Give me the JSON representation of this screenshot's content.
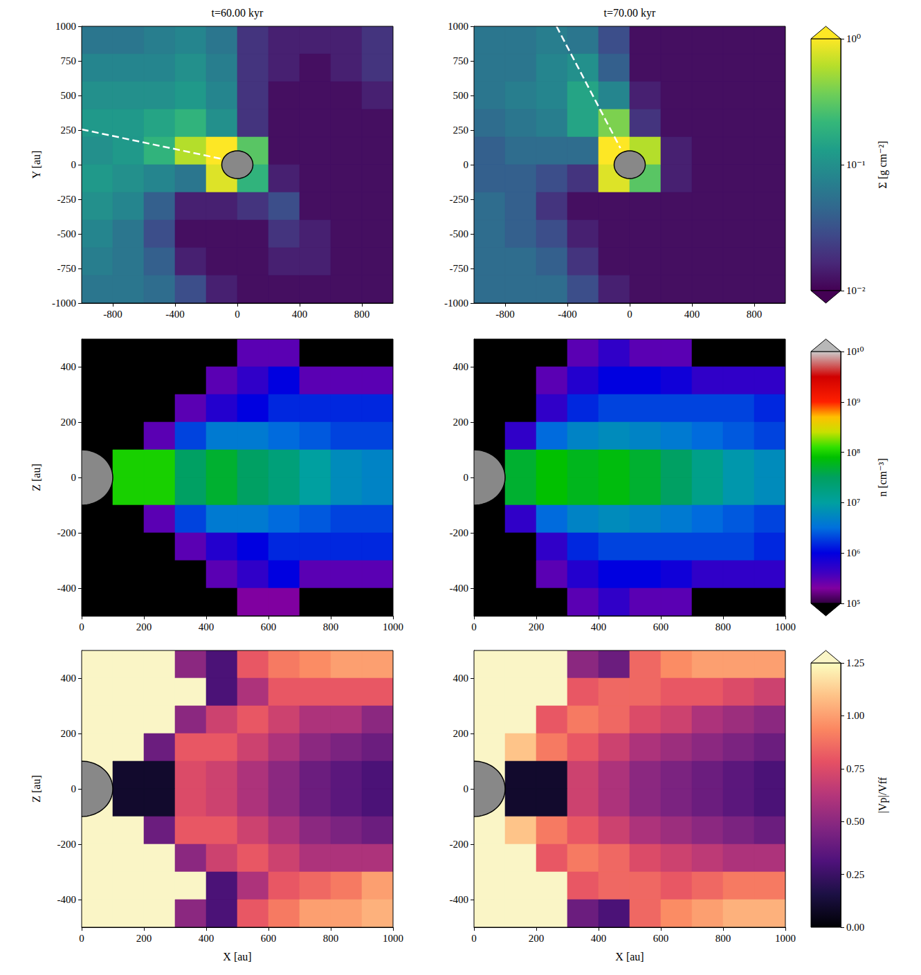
{
  "chart_data": [
    {
      "type": "heatmap",
      "title": "t=60.00 kyr",
      "ylabel": "Y [au]",
      "xlim": [
        -1000,
        1000
      ],
      "ylim": [
        -1000,
        1000
      ],
      "xticks": [
        -800,
        -400,
        0,
        400,
        800
      ],
      "yticks": [
        -1000,
        -750,
        -500,
        -250,
        0,
        250,
        500,
        750,
        1000
      ],
      "x": [
        -900,
        -700,
        -500,
        -300,
        -100,
        100,
        300,
        500,
        700,
        900
      ],
      "y": [
        900,
        700,
        500,
        300,
        100,
        -100,
        -300,
        -500,
        -700,
        -900
      ],
      "values": [
        [
          0.06,
          0.06,
          0.07,
          0.08,
          0.06,
          0.02,
          0.015,
          0.015,
          0.015,
          0.02
        ],
        [
          0.08,
          0.08,
          0.08,
          0.1,
          0.07,
          0.02,
          0.015,
          0.012,
          0.015,
          0.02
        ],
        [
          0.1,
          0.1,
          0.1,
          0.12,
          0.08,
          0.02,
          0.012,
          0.012,
          0.012,
          0.015
        ],
        [
          0.12,
          0.12,
          0.15,
          0.2,
          0.1,
          0.02,
          0.012,
          0.012,
          0.012,
          0.012
        ],
        [
          0.1,
          0.12,
          0.2,
          0.6,
          1.5,
          0.3,
          0.012,
          0.012,
          0.012,
          0.012
        ],
        [
          0.12,
          0.1,
          0.08,
          0.06,
          0.8,
          0.2,
          0.015,
          0.012,
          0.012,
          0.012
        ],
        [
          0.1,
          0.08,
          0.04,
          0.015,
          0.015,
          0.02,
          0.03,
          0.012,
          0.012,
          0.012
        ],
        [
          0.08,
          0.06,
          0.03,
          0.012,
          0.012,
          0.012,
          0.02,
          0.015,
          0.012,
          0.012
        ],
        [
          0.07,
          0.06,
          0.04,
          0.015,
          0.012,
          0.012,
          0.015,
          0.015,
          0.012,
          0.012
        ],
        [
          0.06,
          0.06,
          0.05,
          0.03,
          0.015,
          0.012,
          0.012,
          0.012,
          0.012,
          0.012
        ]
      ],
      "sink_radius": 100,
      "annotations": [
        {
          "type": "line",
          "x": [
            -1000,
            -50
          ],
          "y": [
            255,
            30
          ],
          "line_style": "dashed",
          "color": "#ffffff"
        }
      ]
    },
    {
      "type": "heatmap",
      "title": "t=70.00 kyr",
      "xlim": [
        -1000,
        1000
      ],
      "ylim": [
        -1000,
        1000
      ],
      "xticks": [
        -800,
        -400,
        0,
        400,
        800
      ],
      "yticks": [
        -1000,
        -750,
        -500,
        -250,
        0,
        250,
        500,
        750,
        1000
      ],
      "x": [
        -900,
        -700,
        -500,
        -300,
        -100,
        100,
        300,
        500,
        700,
        900
      ],
      "y": [
        900,
        700,
        500,
        300,
        100,
        -100,
        -300,
        -500,
        -700,
        -900
      ],
      "values": [
        [
          0.06,
          0.06,
          0.07,
          0.06,
          0.03,
          0.012,
          0.012,
          0.012,
          0.012,
          0.012
        ],
        [
          0.06,
          0.06,
          0.08,
          0.1,
          0.04,
          0.012,
          0.012,
          0.012,
          0.012,
          0.012
        ],
        [
          0.06,
          0.07,
          0.08,
          0.15,
          0.08,
          0.015,
          0.012,
          0.012,
          0.012,
          0.012
        ],
        [
          0.05,
          0.06,
          0.07,
          0.15,
          0.4,
          0.02,
          0.012,
          0.012,
          0.012,
          0.012
        ],
        [
          0.04,
          0.05,
          0.05,
          0.05,
          1.5,
          0.6,
          0.015,
          0.012,
          0.012,
          0.012
        ],
        [
          0.04,
          0.04,
          0.03,
          0.02,
          0.8,
          0.3,
          0.015,
          0.012,
          0.012,
          0.012
        ],
        [
          0.05,
          0.04,
          0.02,
          0.012,
          0.012,
          0.012,
          0.012,
          0.012,
          0.012,
          0.012
        ],
        [
          0.05,
          0.04,
          0.03,
          0.015,
          0.012,
          0.012,
          0.012,
          0.012,
          0.012,
          0.012
        ],
        [
          0.05,
          0.05,
          0.04,
          0.02,
          0.012,
          0.012,
          0.012,
          0.012,
          0.012,
          0.012
        ],
        [
          0.05,
          0.05,
          0.05,
          0.03,
          0.015,
          0.012,
          0.012,
          0.012,
          0.012,
          0.012
        ]
      ],
      "sink_radius": 100,
      "annotations": [
        {
          "type": "line",
          "x": [
            -470,
            -60
          ],
          "y": [
            1000,
            120
          ],
          "line_style": "dashed",
          "color": "#ffffff"
        }
      ],
      "colorbar": {
        "label": "Σ [g cm⁻²]",
        "lim": [
          0.01,
          1
        ],
        "log": true,
        "ticks": [
          {
            "value": 0.01,
            "label": "10⁻²"
          },
          {
            "value": 0.1,
            "label": "10⁻¹"
          },
          {
            "value": 1,
            "label": "10⁰"
          }
        ]
      }
    },
    {
      "type": "heatmap",
      "ylabel": "Z [au]",
      "xlim": [
        0,
        1000
      ],
      "ylim": [
        -500,
        500
      ],
      "xticks": [
        0,
        200,
        400,
        600,
        800,
        1000
      ],
      "yticks": [
        -400,
        -200,
        0,
        200,
        400
      ],
      "x": [
        50,
        150,
        250,
        350,
        450,
        550,
        650,
        750,
        850,
        950
      ],
      "y": [
        450,
        350,
        250,
        150,
        50,
        -50,
        -150,
        -250,
        -350,
        -450
      ],
      "values": [
        [
          10000.0,
          10000.0,
          10000.0,
          10000.0,
          10000.0,
          300000.0,
          300000.0,
          10000.0,
          10000.0,
          10000.0
        ],
        [
          10000.0,
          10000.0,
          10000.0,
          10000.0,
          300000.0,
          500000.0,
          1000000.0,
          300000.0,
          300000.0,
          300000.0
        ],
        [
          10000.0,
          10000.0,
          10000.0,
          300000.0,
          600000.0,
          1000000.0,
          1500000.0,
          1500000.0,
          1500000.0,
          1500000.0
        ],
        [
          10000.0,
          10000.0,
          300000.0,
          2000000.0,
          4000000.0,
          4000000.0,
          3000000.0,
          2500000.0,
          2000000.0,
          2000000.0
        ],
        [
          10000.0,
          100000000.0,
          100000000.0,
          30000000.0,
          50000000.0,
          30000000.0,
          20000000.0,
          10000000.0,
          6000000.0,
          5000000.0
        ],
        [
          10000.0,
          100000000.0,
          100000000.0,
          30000000.0,
          50000000.0,
          30000000.0,
          20000000.0,
          10000000.0,
          6000000.0,
          5000000.0
        ],
        [
          10000.0,
          10000.0,
          300000.0,
          2000000.0,
          4000000.0,
          4000000.0,
          3000000.0,
          2500000.0,
          2000000.0,
          2000000.0
        ],
        [
          10000.0,
          10000.0,
          10000.0,
          300000.0,
          600000.0,
          1000000.0,
          1500000.0,
          1500000.0,
          1500000.0,
          1500000.0
        ],
        [
          10000.0,
          10000.0,
          10000.0,
          10000.0,
          300000.0,
          500000.0,
          1000000.0,
          300000.0,
          300000.0,
          300000.0
        ],
        [
          10000.0,
          10000.0,
          10000.0,
          10000.0,
          10000.0,
          200000.0,
          200000.0,
          10000.0,
          10000.0,
          10000.0
        ]
      ],
      "sink_radius": 100
    },
    {
      "type": "heatmap",
      "xlim": [
        0,
        1000
      ],
      "ylim": [
        -500,
        500
      ],
      "xticks": [
        0,
        200,
        400,
        600,
        800,
        1000
      ],
      "yticks": [
        -400,
        -200,
        0,
        200,
        400
      ],
      "x": [
        50,
        150,
        250,
        350,
        450,
        550,
        650,
        750,
        850,
        950
      ],
      "y": [
        450,
        350,
        250,
        150,
        50,
        -50,
        -150,
        -250,
        -350,
        -450
      ],
      "values": [
        [
          10000.0,
          10000.0,
          10000.0,
          300000.0,
          500000.0,
          300000.0,
          300000.0,
          10000.0,
          10000.0,
          10000.0
        ],
        [
          10000.0,
          10000.0,
          300000.0,
          600000.0,
          1000000.0,
          1000000.0,
          800000.0,
          500000.0,
          500000.0,
          500000.0
        ],
        [
          10000.0,
          10000.0,
          500000.0,
          1500000.0,
          2000000.0,
          2000000.0,
          2000000.0,
          2000000.0,
          2000000.0,
          1500000.0
        ],
        [
          10000.0,
          500000.0,
          3000000.0,
          5000000.0,
          6000000.0,
          5000000.0,
          4000000.0,
          3000000.0,
          2500000.0,
          2000000.0
        ],
        [
          10000.0,
          50000000.0,
          80000000.0,
          60000000.0,
          70000000.0,
          50000000.0,
          30000000.0,
          15000000.0,
          8000000.0,
          6000000.0
        ],
        [
          10000.0,
          50000000.0,
          80000000.0,
          60000000.0,
          70000000.0,
          50000000.0,
          30000000.0,
          15000000.0,
          8000000.0,
          6000000.0
        ],
        [
          10000.0,
          500000.0,
          3000000.0,
          5000000.0,
          6000000.0,
          5000000.0,
          4000000.0,
          3000000.0,
          2500000.0,
          2000000.0
        ],
        [
          10000.0,
          10000.0,
          500000.0,
          1500000.0,
          2000000.0,
          2000000.0,
          2000000.0,
          2000000.0,
          2000000.0,
          1500000.0
        ],
        [
          10000.0,
          10000.0,
          300000.0,
          600000.0,
          1000000.0,
          1000000.0,
          800000.0,
          500000.0,
          500000.0,
          500000.0
        ],
        [
          10000.0,
          10000.0,
          10000.0,
          300000.0,
          500000.0,
          300000.0,
          300000.0,
          10000.0,
          10000.0,
          10000.0
        ]
      ],
      "sink_radius": 100,
      "colorbar": {
        "label": "n [cm⁻³]",
        "lim": [
          100000.0,
          10000000000.0
        ],
        "log": true,
        "ticks": [
          {
            "value": 100000.0,
            "label": "10⁵"
          },
          {
            "value": 1000000.0,
            "label": "10⁶"
          },
          {
            "value": 10000000.0,
            "label": "10⁷"
          },
          {
            "value": 100000000.0,
            "label": "10⁸"
          },
          {
            "value": 1000000000.0,
            "label": "10⁹"
          },
          {
            "value": 10000000000.0,
            "label": "10¹⁰"
          }
        ]
      }
    },
    {
      "type": "heatmap",
      "xlabel": "X [au]",
      "ylabel": "Z [au]",
      "xlim": [
        0,
        1000
      ],
      "ylim": [
        -500,
        500
      ],
      "xticks": [
        0,
        200,
        400,
        600,
        800,
        1000
      ],
      "yticks": [
        -400,
        -200,
        0,
        200,
        400
      ],
      "x": [
        50,
        150,
        250,
        350,
        450,
        550,
        650,
        750,
        850,
        950
      ],
      "y": [
        450,
        350,
        250,
        150,
        50,
        -50,
        -150,
        -250,
        -350,
        -450
      ],
      "values": [
        [
          1.3,
          1.3,
          1.3,
          0.5,
          0.3,
          0.8,
          0.9,
          0.95,
          1.0,
          1.0
        ],
        [
          1.3,
          1.3,
          1.3,
          1.3,
          0.3,
          0.6,
          0.8,
          0.8,
          0.8,
          0.8
        ],
        [
          1.3,
          1.3,
          1.3,
          0.5,
          0.7,
          0.8,
          0.7,
          0.6,
          0.6,
          0.5
        ],
        [
          1.3,
          1.3,
          0.4,
          0.8,
          0.8,
          0.7,
          0.6,
          0.5,
          0.45,
          0.4
        ],
        [
          1.3,
          0.1,
          0.1,
          0.75,
          0.7,
          0.6,
          0.5,
          0.4,
          0.35,
          0.3
        ],
        [
          1.3,
          0.1,
          0.1,
          0.75,
          0.7,
          0.6,
          0.5,
          0.4,
          0.35,
          0.3
        ],
        [
          1.3,
          1.3,
          0.4,
          0.8,
          0.8,
          0.7,
          0.6,
          0.5,
          0.45,
          0.4
        ],
        [
          1.3,
          1.3,
          1.3,
          0.5,
          0.7,
          0.8,
          0.7,
          0.6,
          0.6,
          0.6
        ],
        [
          1.3,
          1.3,
          1.3,
          1.3,
          0.3,
          0.6,
          0.8,
          0.85,
          0.9,
          1.0
        ],
        [
          1.3,
          1.3,
          1.3,
          0.5,
          0.3,
          0.8,
          0.9,
          1.0,
          1.0,
          1.05
        ]
      ],
      "sink_radius": 100
    },
    {
      "type": "heatmap",
      "xlabel": "X [au]",
      "xlim": [
        0,
        1000
      ],
      "ylim": [
        -500,
        500
      ],
      "xticks": [
        0,
        200,
        400,
        600,
        800,
        1000
      ],
      "yticks": [
        -400,
        -200,
        0,
        200,
        400
      ],
      "x": [
        50,
        150,
        250,
        350,
        450,
        550,
        650,
        750,
        850,
        950
      ],
      "y": [
        450,
        350,
        250,
        150,
        50,
        -50,
        -150,
        -250,
        -350,
        -450
      ],
      "values": [
        [
          1.3,
          1.3,
          1.3,
          0.5,
          0.4,
          0.85,
          0.95,
          1.0,
          1.0,
          1.0
        ],
        [
          1.3,
          1.3,
          1.3,
          0.8,
          0.85,
          0.85,
          0.8,
          0.8,
          0.75,
          0.7
        ],
        [
          1.3,
          1.3,
          0.8,
          0.9,
          0.85,
          0.75,
          0.7,
          0.6,
          0.55,
          0.5
        ],
        [
          1.3,
          1.1,
          0.9,
          0.8,
          0.7,
          0.6,
          0.55,
          0.5,
          0.45,
          0.4
        ],
        [
          1.3,
          0.1,
          0.1,
          0.7,
          0.6,
          0.5,
          0.45,
          0.4,
          0.35,
          0.3
        ],
        [
          1.3,
          0.1,
          0.1,
          0.7,
          0.6,
          0.5,
          0.45,
          0.4,
          0.35,
          0.3
        ],
        [
          1.3,
          1.1,
          0.9,
          0.8,
          0.7,
          0.6,
          0.55,
          0.5,
          0.45,
          0.4
        ],
        [
          1.3,
          1.3,
          0.8,
          0.9,
          0.85,
          0.75,
          0.7,
          0.65,
          0.6,
          0.6
        ],
        [
          1.3,
          1.3,
          1.3,
          0.8,
          0.85,
          0.85,
          0.8,
          0.85,
          0.9,
          0.9
        ],
        [
          1.3,
          1.3,
          1.3,
          0.4,
          0.3,
          0.85,
          0.95,
          1.0,
          1.05,
          1.05
        ]
      ],
      "sink_radius": 100,
      "colorbar": {
        "label": "|Vp|/Vff",
        "lim": [
          0,
          1.25
        ],
        "log": false,
        "ticks": [
          {
            "value": 0,
            "label": "0.00"
          },
          {
            "value": 0.25,
            "label": "0.25"
          },
          {
            "value": 0.5,
            "label": "0.50"
          },
          {
            "value": 0.75,
            "label": "0.75"
          },
          {
            "value": 1,
            "label": "1.00"
          },
          {
            "value": 1.25,
            "label": "1.25"
          }
        ]
      }
    }
  ]
}
